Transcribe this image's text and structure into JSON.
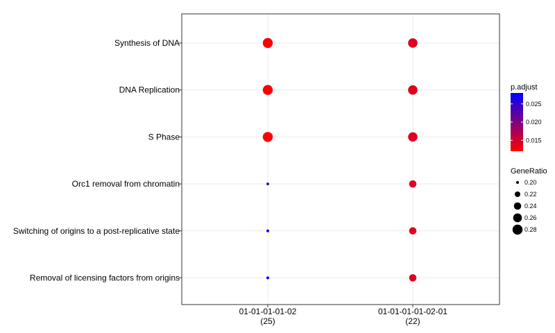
{
  "chart_data": {
    "type": "scatter",
    "title": "",
    "xlabel": "",
    "ylabel": "",
    "grid": true,
    "legend_position": "right",
    "x_categories": [
      {
        "label": "01-01-01-01-02",
        "count": "(25)"
      },
      {
        "label": "01-01-01-01-02-01",
        "count": "(22)"
      }
    ],
    "y_categories": [
      "Synthesis of DNA",
      "DNA Replication",
      "S Phase",
      "Orc1 removal from chromatin",
      "Switching of origins to a post-replicative state",
      "Removal of licensing factors from origins"
    ],
    "points": [
      {
        "x": "01-01-01-01-02",
        "y": "Synthesis of DNA",
        "gene_ratio": 0.28,
        "p_adjust": 0.012
      },
      {
        "x": "01-01-01-01-02",
        "y": "DNA Replication",
        "gene_ratio": 0.28,
        "p_adjust": 0.012
      },
      {
        "x": "01-01-01-01-02",
        "y": "S Phase",
        "gene_ratio": 0.28,
        "p_adjust": 0.012
      },
      {
        "x": "01-01-01-01-02",
        "y": "Orc1 removal from chromatin",
        "gene_ratio": 0.2,
        "p_adjust": 0.024
      },
      {
        "x": "01-01-01-01-02",
        "y": "Switching of origins to a post-replicative state",
        "gene_ratio": 0.2,
        "p_adjust": 0.028
      },
      {
        "x": "01-01-01-01-02",
        "y": "Removal of licensing factors from origins",
        "gene_ratio": 0.2,
        "p_adjust": 0.028
      },
      {
        "x": "01-01-01-01-02-01",
        "y": "Synthesis of DNA",
        "gene_ratio": 0.27,
        "p_adjust": 0.014
      },
      {
        "x": "01-01-01-01-02-01",
        "y": "DNA Replication",
        "gene_ratio": 0.27,
        "p_adjust": 0.014
      },
      {
        "x": "01-01-01-01-02-01",
        "y": "S Phase",
        "gene_ratio": 0.27,
        "p_adjust": 0.014
      },
      {
        "x": "01-01-01-01-02-01",
        "y": "Orc1 removal from chromatin",
        "gene_ratio": 0.24,
        "p_adjust": 0.014
      },
      {
        "x": "01-01-01-01-02-01",
        "y": "Switching of origins to a post-replicative state",
        "gene_ratio": 0.24,
        "p_adjust": 0.014
      },
      {
        "x": "01-01-01-01-02-01",
        "y": "Removal of licensing factors from origins",
        "gene_ratio": 0.24,
        "p_adjust": 0.014
      }
    ],
    "color_legend": {
      "title": "p.adjust",
      "ticks": [
        "0.015",
        "0.020",
        "0.025"
      ],
      "tick_values": [
        0.015,
        0.02,
        0.025
      ],
      "range": [
        0.012,
        0.028
      ],
      "low_color": "#ff0000",
      "high_color": "#0000ff"
    },
    "size_legend": {
      "title": "GeneRatio",
      "ticks": [
        "0.20",
        "0.22",
        "0.24",
        "0.26",
        "0.28"
      ],
      "tick_values": [
        0.2,
        0.22,
        0.24,
        0.26,
        0.28
      ],
      "range": [
        0.2,
        0.28
      ],
      "color": "#000000"
    }
  }
}
